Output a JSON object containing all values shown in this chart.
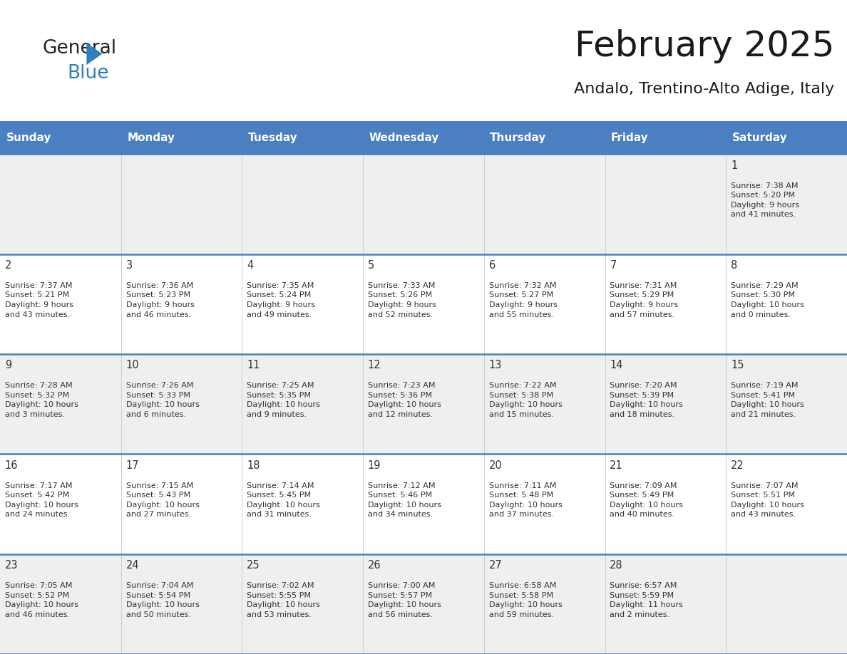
{
  "title": "February 2025",
  "subtitle": "Andalo, Trentino-Alto Adige, Italy",
  "days_of_week": [
    "Sunday",
    "Monday",
    "Tuesday",
    "Wednesday",
    "Thursday",
    "Friday",
    "Saturday"
  ],
  "header_bg": "#4a7fc1",
  "header_text": "#FFFFFF",
  "cell_bg_gray": "#EFEFEF",
  "cell_bg_white": "#FFFFFF",
  "border_color_thick": "#4a7fc1",
  "border_color_thin": "#c8c8c8",
  "title_color": "#1a1a1a",
  "subtitle_color": "#1a1a1a",
  "cell_text_color": "#333333",
  "day_num_color": "#333333",
  "logo_general_color": "#222222",
  "logo_blue_color": "#2e7fc1",
  "weeks": [
    [
      {
        "day": null,
        "info": null
      },
      {
        "day": null,
        "info": null
      },
      {
        "day": null,
        "info": null
      },
      {
        "day": null,
        "info": null
      },
      {
        "day": null,
        "info": null
      },
      {
        "day": null,
        "info": null
      },
      {
        "day": 1,
        "info": "Sunrise: 7:38 AM\nSunset: 5:20 PM\nDaylight: 9 hours\nand 41 minutes."
      }
    ],
    [
      {
        "day": 2,
        "info": "Sunrise: 7:37 AM\nSunset: 5:21 PM\nDaylight: 9 hours\nand 43 minutes."
      },
      {
        "day": 3,
        "info": "Sunrise: 7:36 AM\nSunset: 5:23 PM\nDaylight: 9 hours\nand 46 minutes."
      },
      {
        "day": 4,
        "info": "Sunrise: 7:35 AM\nSunset: 5:24 PM\nDaylight: 9 hours\nand 49 minutes."
      },
      {
        "day": 5,
        "info": "Sunrise: 7:33 AM\nSunset: 5:26 PM\nDaylight: 9 hours\nand 52 minutes."
      },
      {
        "day": 6,
        "info": "Sunrise: 7:32 AM\nSunset: 5:27 PM\nDaylight: 9 hours\nand 55 minutes."
      },
      {
        "day": 7,
        "info": "Sunrise: 7:31 AM\nSunset: 5:29 PM\nDaylight: 9 hours\nand 57 minutes."
      },
      {
        "day": 8,
        "info": "Sunrise: 7:29 AM\nSunset: 5:30 PM\nDaylight: 10 hours\nand 0 minutes."
      }
    ],
    [
      {
        "day": 9,
        "info": "Sunrise: 7:28 AM\nSunset: 5:32 PM\nDaylight: 10 hours\nand 3 minutes."
      },
      {
        "day": 10,
        "info": "Sunrise: 7:26 AM\nSunset: 5:33 PM\nDaylight: 10 hours\nand 6 minutes."
      },
      {
        "day": 11,
        "info": "Sunrise: 7:25 AM\nSunset: 5:35 PM\nDaylight: 10 hours\nand 9 minutes."
      },
      {
        "day": 12,
        "info": "Sunrise: 7:23 AM\nSunset: 5:36 PM\nDaylight: 10 hours\nand 12 minutes."
      },
      {
        "day": 13,
        "info": "Sunrise: 7:22 AM\nSunset: 5:38 PM\nDaylight: 10 hours\nand 15 minutes."
      },
      {
        "day": 14,
        "info": "Sunrise: 7:20 AM\nSunset: 5:39 PM\nDaylight: 10 hours\nand 18 minutes."
      },
      {
        "day": 15,
        "info": "Sunrise: 7:19 AM\nSunset: 5:41 PM\nDaylight: 10 hours\nand 21 minutes."
      }
    ],
    [
      {
        "day": 16,
        "info": "Sunrise: 7:17 AM\nSunset: 5:42 PM\nDaylight: 10 hours\nand 24 minutes."
      },
      {
        "day": 17,
        "info": "Sunrise: 7:15 AM\nSunset: 5:43 PM\nDaylight: 10 hours\nand 27 minutes."
      },
      {
        "day": 18,
        "info": "Sunrise: 7:14 AM\nSunset: 5:45 PM\nDaylight: 10 hours\nand 31 minutes."
      },
      {
        "day": 19,
        "info": "Sunrise: 7:12 AM\nSunset: 5:46 PM\nDaylight: 10 hours\nand 34 minutes."
      },
      {
        "day": 20,
        "info": "Sunrise: 7:11 AM\nSunset: 5:48 PM\nDaylight: 10 hours\nand 37 minutes."
      },
      {
        "day": 21,
        "info": "Sunrise: 7:09 AM\nSunset: 5:49 PM\nDaylight: 10 hours\nand 40 minutes."
      },
      {
        "day": 22,
        "info": "Sunrise: 7:07 AM\nSunset: 5:51 PM\nDaylight: 10 hours\nand 43 minutes."
      }
    ],
    [
      {
        "day": 23,
        "info": "Sunrise: 7:05 AM\nSunset: 5:52 PM\nDaylight: 10 hours\nand 46 minutes."
      },
      {
        "day": 24,
        "info": "Sunrise: 7:04 AM\nSunset: 5:54 PM\nDaylight: 10 hours\nand 50 minutes."
      },
      {
        "day": 25,
        "info": "Sunrise: 7:02 AM\nSunset: 5:55 PM\nDaylight: 10 hours\nand 53 minutes."
      },
      {
        "day": 26,
        "info": "Sunrise: 7:00 AM\nSunset: 5:57 PM\nDaylight: 10 hours\nand 56 minutes."
      },
      {
        "day": 27,
        "info": "Sunrise: 6:58 AM\nSunset: 5:58 PM\nDaylight: 10 hours\nand 59 minutes."
      },
      {
        "day": 28,
        "info": "Sunrise: 6:57 AM\nSunset: 5:59 PM\nDaylight: 11 hours\nand 2 minutes."
      },
      {
        "day": null,
        "info": null
      }
    ]
  ],
  "figsize": [
    11.88,
    9.18
  ],
  "dpi": 100
}
